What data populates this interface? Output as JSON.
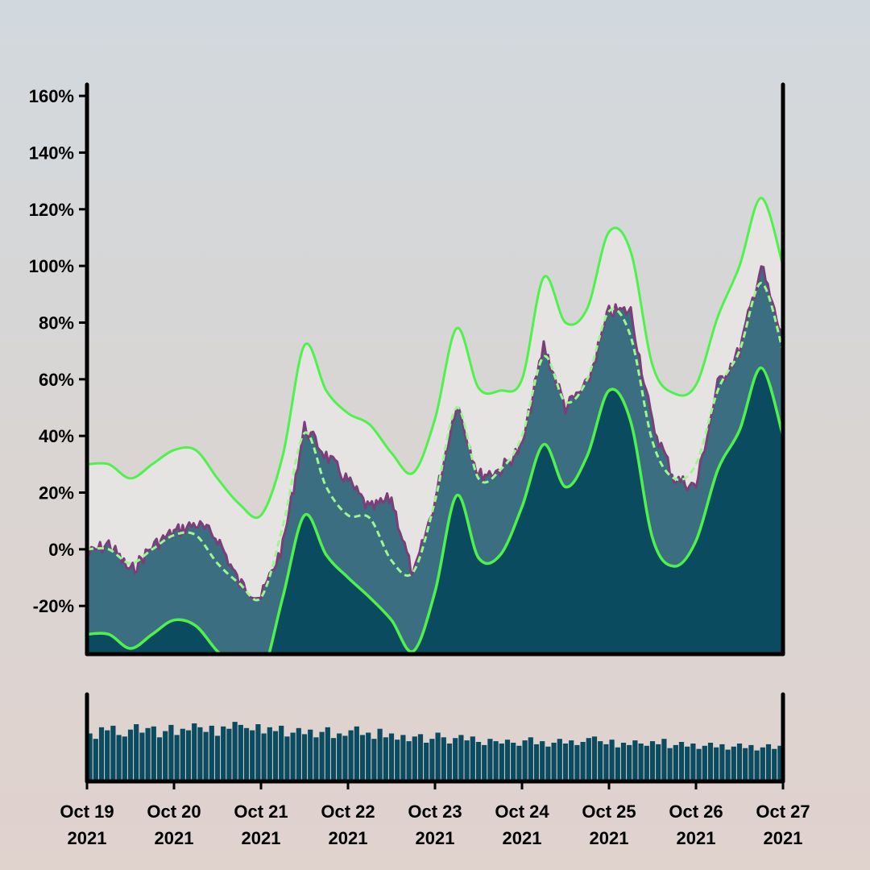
{
  "colors": {
    "background_top": "#d2d9de",
    "background_bottom": "#e0d2cd",
    "band_fill": "#e6e3e3",
    "price_fill": "#3b6e80",
    "price_outline": "#7a3f78",
    "lower_fill": "#0b4b60",
    "bollinger_line": "#4df34a",
    "volume_bar": "#0b4b60",
    "axis": "#000000"
  },
  "chart_data": {
    "type": "area",
    "x_start": "2021-10-19",
    "x_end": "2021-10-27",
    "x_ticks": [
      {
        "date": "2021-10-19",
        "line1": "Oct 19",
        "line2": "2021"
      },
      {
        "date": "2021-10-20",
        "line1": "Oct 20",
        "line2": "2021"
      },
      {
        "date": "2021-10-21",
        "line1": "Oct 21",
        "line2": "2021"
      },
      {
        "date": "2021-10-22",
        "line1": "Oct 22",
        "line2": "2021"
      },
      {
        "date": "2021-10-23",
        "line1": "Oct 23",
        "line2": "2021"
      },
      {
        "date": "2021-10-24",
        "line1": "Oct 24",
        "line2": "2021"
      },
      {
        "date": "2021-10-25",
        "line1": "Oct 25",
        "line2": "2021"
      },
      {
        "date": "2021-10-26",
        "line1": "Oct 26",
        "line2": "2021"
      },
      {
        "date": "2021-10-27",
        "line1": "Oct 27",
        "line2": "2021"
      }
    ],
    "y_ticks": [
      -20,
      0,
      20,
      40,
      60,
      80,
      100,
      120,
      140,
      160
    ],
    "y_tick_labels": [
      "-20%",
      "0%",
      "20%",
      "40%",
      "60%",
      "80%",
      "100%",
      "120%",
      "140%",
      "160%"
    ],
    "ylim": [
      -37,
      164
    ],
    "grid": false,
    "series": [
      {
        "role": "price",
        "points": [
          [
            "2021-10-19T00:00",
            -2
          ],
          [
            "2021-10-19T06:00",
            2
          ],
          [
            "2021-10-19T12:00",
            -8
          ],
          [
            "2021-10-19T18:00",
            1
          ],
          [
            "2021-10-20T00:00",
            6
          ],
          [
            "2021-10-20T06:00",
            9
          ],
          [
            "2021-10-20T12:00",
            4
          ],
          [
            "2021-10-20T18:00",
            -12
          ],
          [
            "2021-10-21T00:00",
            -17
          ],
          [
            "2021-10-21T06:00",
            1
          ],
          [
            "2021-10-21T12:00",
            43
          ],
          [
            "2021-10-21T18:00",
            33
          ],
          [
            "2021-10-22T00:00",
            24
          ],
          [
            "2021-10-22T06:00",
            14
          ],
          [
            "2021-10-22T12:00",
            18
          ],
          [
            "2021-10-22T18:00",
            -10
          ],
          [
            "2021-10-23T00:00",
            17
          ],
          [
            "2021-10-23T06:00",
            52
          ],
          [
            "2021-10-23T12:00",
            26
          ],
          [
            "2021-10-23T18:00",
            28
          ],
          [
            "2021-10-24T00:00",
            36
          ],
          [
            "2021-10-24T06:00",
            72
          ],
          [
            "2021-10-24T12:00",
            50
          ],
          [
            "2021-10-24T18:00",
            58
          ],
          [
            "2021-10-25T00:00",
            84
          ],
          [
            "2021-10-25T06:00",
            84
          ],
          [
            "2021-10-25T12:00",
            44
          ],
          [
            "2021-10-25T18:00",
            25
          ],
          [
            "2021-10-26T00:00",
            22
          ],
          [
            "2021-10-26T06:00",
            58
          ],
          [
            "2021-10-26T12:00",
            70
          ],
          [
            "2021-10-26T18:00",
            100
          ],
          [
            "2021-10-27T00:00",
            73
          ]
        ]
      },
      {
        "role": "moving-average",
        "points": [
          [
            "2021-10-19T00:00",
            0
          ],
          [
            "2021-10-19T06:00",
            0
          ],
          [
            "2021-10-19T12:00",
            -5
          ],
          [
            "2021-10-19T18:00",
            0
          ],
          [
            "2021-10-20T00:00",
            5
          ],
          [
            "2021-10-20T06:00",
            5
          ],
          [
            "2021-10-20T12:00",
            -5
          ],
          [
            "2021-10-20T18:00",
            -12
          ],
          [
            "2021-10-21T00:00",
            -17
          ],
          [
            "2021-10-21T06:00",
            8
          ],
          [
            "2021-10-21T12:00",
            41
          ],
          [
            "2021-10-21T18:00",
            22
          ],
          [
            "2021-10-22T00:00",
            12
          ],
          [
            "2021-10-22T06:00",
            11
          ],
          [
            "2021-10-22T12:00",
            -4
          ],
          [
            "2021-10-22T18:00",
            -8
          ],
          [
            "2021-10-23T00:00",
            17
          ],
          [
            "2021-10-23T06:00",
            50
          ],
          [
            "2021-10-23T12:00",
            25
          ],
          [
            "2021-10-23T18:00",
            28
          ],
          [
            "2021-10-24T00:00",
            40
          ],
          [
            "2021-10-24T06:00",
            68
          ],
          [
            "2021-10-24T12:00",
            52
          ],
          [
            "2021-10-24T18:00",
            60
          ],
          [
            "2021-10-25T00:00",
            84
          ],
          [
            "2021-10-25T06:00",
            75
          ],
          [
            "2021-10-25T12:00",
            38
          ],
          [
            "2021-10-25T18:00",
            25
          ],
          [
            "2021-10-26T00:00",
            30
          ],
          [
            "2021-10-26T06:00",
            56
          ],
          [
            "2021-10-26T12:00",
            70
          ],
          [
            "2021-10-26T18:00",
            94
          ],
          [
            "2021-10-27T00:00",
            70
          ]
        ]
      },
      {
        "role": "upper-band",
        "points": [
          [
            "2021-10-19T00:00",
            30
          ],
          [
            "2021-10-19T06:00",
            30
          ],
          [
            "2021-10-19T12:00",
            25
          ],
          [
            "2021-10-19T18:00",
            30
          ],
          [
            "2021-10-20T00:00",
            35
          ],
          [
            "2021-10-20T06:00",
            35
          ],
          [
            "2021-10-20T12:00",
            25
          ],
          [
            "2021-10-20T18:00",
            16
          ],
          [
            "2021-10-21T00:00",
            12
          ],
          [
            "2021-10-21T06:00",
            33
          ],
          [
            "2021-10-21T12:00",
            72
          ],
          [
            "2021-10-21T18:00",
            56
          ],
          [
            "2021-10-22T00:00",
            48
          ],
          [
            "2021-10-22T06:00",
            44
          ],
          [
            "2021-10-22T12:00",
            34
          ],
          [
            "2021-10-22T18:00",
            27
          ],
          [
            "2021-10-23T00:00",
            46
          ],
          [
            "2021-10-23T06:00",
            78
          ],
          [
            "2021-10-23T12:00",
            57
          ],
          [
            "2021-10-23T18:00",
            56
          ],
          [
            "2021-10-24T00:00",
            60
          ],
          [
            "2021-10-24T06:00",
            96
          ],
          [
            "2021-10-24T12:00",
            80
          ],
          [
            "2021-10-24T18:00",
            85
          ],
          [
            "2021-10-25T00:00",
            112
          ],
          [
            "2021-10-25T06:00",
            105
          ],
          [
            "2021-10-25T12:00",
            65
          ],
          [
            "2021-10-25T18:00",
            55
          ],
          [
            "2021-10-26T00:00",
            58
          ],
          [
            "2021-10-26T06:00",
            82
          ],
          [
            "2021-10-26T12:00",
            100
          ],
          [
            "2021-10-26T18:00",
            124
          ],
          [
            "2021-10-27T00:00",
            100
          ]
        ]
      },
      {
        "role": "lower-band",
        "points": [
          [
            "2021-10-19T00:00",
            -30
          ],
          [
            "2021-10-19T06:00",
            -30
          ],
          [
            "2021-10-19T12:00",
            -35
          ],
          [
            "2021-10-19T18:00",
            -30
          ],
          [
            "2021-10-20T00:00",
            -25
          ],
          [
            "2021-10-20T06:00",
            -27
          ],
          [
            "2021-10-20T12:00",
            -36
          ],
          [
            "2021-10-20T18:00",
            -42
          ],
          [
            "2021-10-21T00:00",
            -45
          ],
          [
            "2021-10-21T06:00",
            -17
          ],
          [
            "2021-10-21T12:00",
            12
          ],
          [
            "2021-10-21T18:00",
            -2
          ],
          [
            "2021-10-22T00:00",
            -10
          ],
          [
            "2021-10-22T06:00",
            -17
          ],
          [
            "2021-10-22T12:00",
            -25
          ],
          [
            "2021-10-22T18:00",
            -36
          ],
          [
            "2021-10-23T00:00",
            -15
          ],
          [
            "2021-10-23T06:00",
            19
          ],
          [
            "2021-10-23T12:00",
            -3
          ],
          [
            "2021-10-23T18:00",
            -2
          ],
          [
            "2021-10-24T00:00",
            15
          ],
          [
            "2021-10-24T06:00",
            37
          ],
          [
            "2021-10-24T12:00",
            22
          ],
          [
            "2021-10-24T18:00",
            33
          ],
          [
            "2021-10-25T00:00",
            56
          ],
          [
            "2021-10-25T06:00",
            45
          ],
          [
            "2021-10-25T12:00",
            4
          ],
          [
            "2021-10-25T18:00",
            -6
          ],
          [
            "2021-10-26T00:00",
            3
          ],
          [
            "2021-10-26T06:00",
            28
          ],
          [
            "2021-10-26T12:00",
            42
          ],
          [
            "2021-10-26T18:00",
            64
          ],
          [
            "2021-10-27T00:00",
            40
          ]
        ]
      }
    ],
    "volume": {
      "type": "bar",
      "values": [
        0.62,
        0.55,
        0.7,
        0.66,
        0.72,
        0.6,
        0.58,
        0.67,
        0.74,
        0.63,
        0.69,
        0.71,
        0.57,
        0.65,
        0.73,
        0.6,
        0.68,
        0.66,
        0.75,
        0.7,
        0.64,
        0.72,
        0.59,
        0.71,
        0.68,
        0.77,
        0.73,
        0.69,
        0.66,
        0.74,
        0.62,
        0.7,
        0.65,
        0.72,
        0.58,
        0.63,
        0.69,
        0.61,
        0.67,
        0.57,
        0.64,
        0.7,
        0.56,
        0.62,
        0.59,
        0.66,
        0.71,
        0.6,
        0.63,
        0.55,
        0.68,
        0.57,
        0.62,
        0.54,
        0.6,
        0.52,
        0.58,
        0.61,
        0.5,
        0.55,
        0.63,
        0.57,
        0.49,
        0.56,
        0.6,
        0.53,
        0.58,
        0.51,
        0.47,
        0.55,
        0.52,
        0.49,
        0.54,
        0.5,
        0.46,
        0.53,
        0.57,
        0.48,
        0.52,
        0.45,
        0.5,
        0.55,
        0.49,
        0.53,
        0.47,
        0.51,
        0.56,
        0.58,
        0.52,
        0.48,
        0.54,
        0.44,
        0.5,
        0.47,
        0.53,
        0.49,
        0.46,
        0.52,
        0.48,
        0.55,
        0.43,
        0.47,
        0.51,
        0.45,
        0.49,
        0.42,
        0.46,
        0.5,
        0.44,
        0.48,
        0.41,
        0.45,
        0.49,
        0.43,
        0.47,
        0.4,
        0.44,
        0.48,
        0.42,
        0.46
      ],
      "y_unit": "relative"
    }
  }
}
